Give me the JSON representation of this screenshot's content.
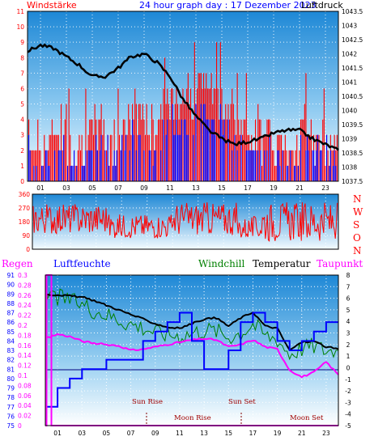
{
  "header": {
    "left": "Windstärke",
    "center": "24 hour graph day : 17 Dezember 2023",
    "right": "Luftdruck"
  },
  "wind_dir_letters": [
    "N",
    "W",
    "S",
    "O",
    "N"
  ],
  "bottom_header": {
    "regen": "Regen",
    "luftfeuchte": "Luftfeuchte",
    "windchill": "Windchill",
    "temperatur": "Temperatur",
    "taupunkt": "Taupunkt"
  },
  "annotations": {
    "sunrise": "Sun Rise",
    "moonrise": "Moon Rise",
    "sunset": "Sun Set",
    "moonset": "Moon Set"
  },
  "colors": {
    "wind_bars": "#ff0000",
    "gust_bars": "#0000ff",
    "pressure": "#000000",
    "direction": "#ff0000",
    "temperature": "#000000",
    "windchill": "#008000",
    "dewpoint": "#ff00ff",
    "humidity": "#0000ff",
    "rain": "#ff00ff"
  },
  "chart_data": [
    {
      "type": "bar",
      "name": "wind",
      "x_ticks": [
        "01",
        "03",
        "05",
        "07",
        "09",
        "11",
        "13",
        "15",
        "17",
        "19",
        "21",
        "23"
      ],
      "y_left_ticks": [
        "0",
        "1",
        "2",
        "3",
        "4",
        "5",
        "6",
        "7",
        "8",
        "9",
        "10",
        "11"
      ],
      "y_right_ticks": [
        "1037.5",
        "1038",
        "1038.5",
        "1039",
        "1039.5",
        "1040",
        "1040.5",
        "1041",
        "1041.5",
        "1042",
        "1042.5",
        "1043",
        "1043.5"
      ],
      "ylim_left": [
        0,
        11
      ],
      "ylim_right": [
        1037.5,
        1043.5
      ],
      "wind_levels_hourly": [
        3,
        3,
        4,
        3,
        3,
        4,
        3,
        4,
        5,
        4,
        5,
        6,
        6,
        7,
        6,
        5,
        4,
        4,
        3,
        3,
        3,
        4,
        3,
        3
      ],
      "pressure": {
        "x": [
          0,
          1,
          2,
          3,
          4,
          5,
          6,
          7,
          8,
          9,
          10,
          11,
          12,
          13,
          14,
          15,
          16,
          17,
          18,
          19,
          20,
          21,
          22,
          23,
          24
        ],
        "y": [
          1042.1,
          1042.3,
          1042.2,
          1041.9,
          1041.6,
          1041.2,
          1041.2,
          1041.5,
          1041.9,
          1042.0,
          1041.7,
          1041.2,
          1040.4,
          1039.8,
          1039.3,
          1039.0,
          1038.8,
          1038.9,
          1039.0,
          1039.2,
          1039.3,
          1039.3,
          1039.0,
          1038.8,
          1038.6
        ]
      }
    },
    {
      "type": "line",
      "name": "wind_direction",
      "y_ticks": [
        "0",
        "90",
        "180",
        "270",
        "360"
      ],
      "ylim": [
        0,
        360
      ]
    },
    {
      "type": "line",
      "name": "climate",
      "x_ticks": [
        "01",
        "03",
        "05",
        "07",
        "09",
        "11",
        "13",
        "15",
        "17",
        "19",
        "21",
        "23"
      ],
      "humidity_ticks": [
        "75",
        "76",
        "77",
        "78",
        "79",
        "80",
        "81",
        "82",
        "83",
        "84",
        "85",
        "86",
        "87",
        "88",
        "89",
        "90",
        "91"
      ],
      "rain_ticks": [
        "0",
        "0.02",
        "0.04",
        "0.06",
        "0.08",
        "0.1",
        "0.12",
        "0.14",
        "0.16",
        "0.18",
        "0.2",
        "0.22",
        "0.24",
        "0.26",
        "0.28",
        "0.3"
      ],
      "temp_ticks": [
        "-5",
        "-4",
        "-3",
        "-2",
        "-1",
        "0",
        "1",
        "2",
        "3",
        "4",
        "5",
        "6",
        "7",
        "8"
      ],
      "ylim_humidity": [
        75,
        91
      ],
      "ylim_temp": [
        -5,
        8
      ],
      "temperature": {
        "x": [
          0,
          1,
          2,
          3,
          4,
          5,
          6,
          7,
          8,
          9,
          10,
          11,
          12,
          13,
          14,
          15,
          16,
          17,
          18,
          19,
          20,
          21,
          22,
          23,
          24
        ],
        "y": [
          6.3,
          6.3,
          6.2,
          6.1,
          5.8,
          5.4,
          5.0,
          4.6,
          4.2,
          3.8,
          3.5,
          3.4,
          3.8,
          4.2,
          4.3,
          3.6,
          4.3,
          4.8,
          3.6,
          3.4,
          1.5,
          2.2,
          2.3,
          1.8,
          1.6
        ]
      },
      "windchill": {
        "x": [
          0,
          1,
          2,
          3,
          4,
          5,
          6,
          7,
          8,
          9,
          10,
          11,
          12,
          13,
          14,
          15,
          16,
          17,
          18,
          19,
          20,
          21,
          22,
          23,
          24
        ],
        "y": [
          6.2,
          6.1,
          5.8,
          5.5,
          5.0,
          4.6,
          4.2,
          3.8,
          3.5,
          3.1,
          2.9,
          2.8,
          3.0,
          3.3,
          3.2,
          2.7,
          3.0,
          3.8,
          2.8,
          2.5,
          1.2,
          1.7,
          1.9,
          1.5,
          1.5
        ]
      },
      "dewpoint": {
        "x": [
          0,
          1,
          2,
          3,
          4,
          5,
          6,
          7,
          8,
          9,
          10,
          11,
          12,
          13,
          14,
          15,
          16,
          17,
          18,
          19,
          20,
          21,
          22,
          23,
          24
        ],
        "y": [
          2.5,
          2.9,
          2.7,
          2.3,
          2.1,
          2.0,
          1.9,
          1.5,
          1.6,
          1.8,
          2.0,
          2.2,
          2.4,
          2.5,
          2.4,
          1.8,
          2.0,
          2.4,
          1.8,
          1.6,
          -0.2,
          -0.8,
          -0.4,
          0.5,
          -0.6
        ]
      },
      "humidity": {
        "x": [
          0,
          1,
          2,
          3,
          4,
          5,
          6,
          7,
          8,
          9,
          10,
          11,
          12,
          13,
          14,
          15,
          16,
          17,
          18,
          19,
          20,
          21,
          22,
          23,
          24
        ],
        "y": [
          77,
          79,
          80,
          81,
          81,
          82,
          82,
          82,
          84,
          85,
          86,
          87,
          84,
          81,
          81,
          83,
          86,
          87,
          86,
          84,
          83,
          84,
          85,
          86,
          86
        ]
      },
      "rain_total": 0.3
    }
  ]
}
